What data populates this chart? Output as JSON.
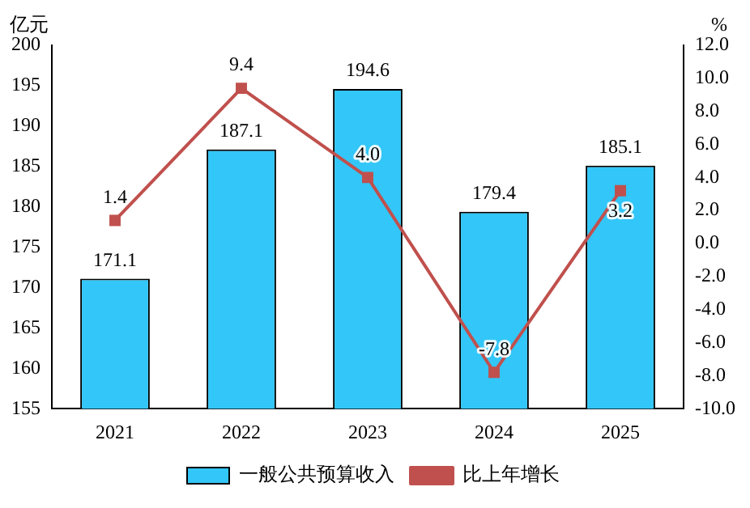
{
  "chart_data": {
    "type": "bar",
    "categories": [
      "2021",
      "2022",
      "2023",
      "2024",
      "2025"
    ],
    "series": [
      {
        "name": "一般公共预算收入",
        "color": "#33c6f8",
        "values": [
          171.1,
          187.1,
          194.6,
          179.4,
          185.1
        ]
      },
      {
        "name": "比上年增长",
        "type": "line",
        "axis": "y2",
        "color": "#c0504d",
        "values": [
          1.4,
          9.4,
          4.0,
          -7.8,
          3.2
        ],
        "value_labels": [
          "1.4",
          "9.4",
          "4.0",
          "-7.8",
          "3.2"
        ]
      }
    ],
    "ylabel": "亿元",
    "y2label": "%",
    "ylim": [
      155,
      200
    ],
    "yticks": [
      155,
      160,
      165,
      170,
      175,
      180,
      185,
      190,
      195,
      200
    ],
    "y2lim": [
      -10,
      12
    ],
    "y2ticks": [
      {
        "value": -10,
        "label": "-10.0"
      },
      {
        "value": -8,
        "label": "-8.0"
      },
      {
        "value": -6,
        "label": "-6.0"
      },
      {
        "value": -4,
        "label": "-4.0"
      },
      {
        "value": -2,
        "label": "-2.0"
      },
      {
        "value": 0,
        "label": "0.0"
      },
      {
        "value": 2,
        "label": "2.0"
      },
      {
        "value": 4,
        "label": "4.0"
      },
      {
        "value": 6,
        "label": "6.0"
      },
      {
        "value": 8,
        "label": "8.0"
      },
      {
        "value": 10,
        "label": "10.0"
      },
      {
        "value": 12,
        "label": "12.0"
      }
    ],
    "grid": false,
    "legend": "bottom",
    "marker": "square",
    "line_style": "solid",
    "data_labels": true
  }
}
